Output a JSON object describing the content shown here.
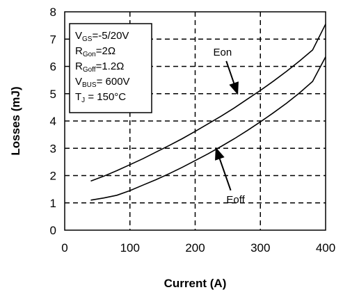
{
  "chart_data": {
    "type": "line",
    "xlabel": "Current (A)",
    "ylabel": "Losses (mJ)",
    "xlim": [
      0,
      400
    ],
    "ylim": [
      0,
      8
    ],
    "xticks": [
      0,
      100,
      200,
      300,
      400
    ],
    "yticks": [
      0,
      1,
      2,
      3,
      4,
      5,
      6,
      7,
      8
    ],
    "grid": true,
    "series": [
      {
        "name": "Eon",
        "color": "#000000",
        "x": [
          40,
          60,
          80,
          100,
          120,
          140,
          160,
          180,
          200,
          220,
          240,
          260,
          280,
          300,
          320,
          340,
          360,
          380,
          400
        ],
        "y": [
          1.8,
          1.98,
          2.18,
          2.4,
          2.62,
          2.86,
          3.1,
          3.35,
          3.62,
          3.9,
          4.18,
          4.48,
          4.8,
          5.12,
          5.46,
          5.82,
          6.2,
          6.6,
          7.55
        ]
      },
      {
        "name": "Eoff",
        "color": "#000000",
        "x": [
          40,
          60,
          80,
          100,
          120,
          140,
          160,
          180,
          200,
          220,
          240,
          260,
          280,
          300,
          320,
          340,
          360,
          380,
          400
        ],
        "y": [
          1.1,
          1.18,
          1.28,
          1.45,
          1.65,
          1.85,
          2.07,
          2.3,
          2.55,
          2.8,
          3.07,
          3.35,
          3.65,
          3.97,
          4.3,
          4.65,
          5.03,
          5.45,
          6.35
        ]
      }
    ],
    "annotations": [
      {
        "text": "Eon",
        "x": 242,
        "y": 6.4,
        "arrow_to": [
          265,
          5.0
        ]
      },
      {
        "text": "Eoff",
        "x": 262,
        "y": 1.0,
        "arrow_to": [
          232,
          3.0
        ]
      }
    ],
    "legend_box": {
      "lines": [
        {
          "main": "V",
          "sub": "GS",
          "rest": "=-5/20V"
        },
        {
          "main": "R",
          "sub": "Gon",
          "rest": "=2Ω"
        },
        {
          "main": "R",
          "sub": "Goff",
          "rest": "=1.2Ω"
        },
        {
          "main": "V",
          "sub": "BUS",
          "rest": "= 600V"
        },
        {
          "main": "T",
          "sub": "J",
          "rest": " = 150°C"
        }
      ]
    }
  }
}
